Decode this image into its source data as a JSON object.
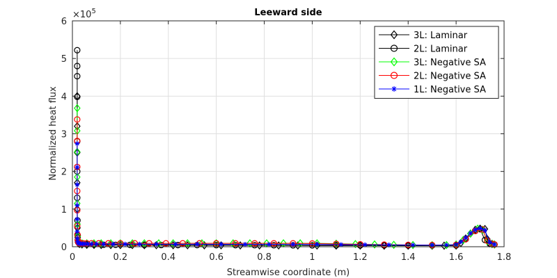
{
  "chart_data": {
    "type": "line",
    "title": "Leeward side",
    "xlabel": "Streamwise coordinate (m)",
    "ylabel": "Normalized heat flux",
    "y_exponent_label": "×10",
    "y_exponent_power": "5",
    "xlim": [
      0,
      1.8
    ],
    "ylim": [
      0,
      600000
    ],
    "x_ticks": [
      0,
      0.2,
      0.4,
      0.6,
      0.8,
      1,
      1.2,
      1.4,
      1.6,
      1.8
    ],
    "x_tick_labels": [
      "0",
      "0.2",
      "0.4",
      "0.6",
      "0.8",
      "1",
      "1.2",
      "1.4",
      "1.6",
      "1.8"
    ],
    "y_ticks": [
      0,
      100000,
      200000,
      300000,
      400000,
      500000,
      600000
    ],
    "y_tick_labels": [
      "0",
      "1",
      "2",
      "3",
      "4",
      "5",
      "6"
    ],
    "grid": true,
    "legend_position": "top-right",
    "series": [
      {
        "name": "3L: Laminar",
        "color": "#000000",
        "marker": "diamond",
        "x": [
          0.02,
          0.02,
          0.02,
          0.02,
          0.02,
          0.021,
          0.022,
          0.023,
          0.025,
          0.03,
          0.04,
          0.06,
          0.09,
          0.12,
          0.16,
          0.2,
          0.25,
          0.3,
          0.35,
          0.42,
          0.48,
          0.55,
          0.62,
          0.7,
          0.78,
          0.86,
          0.94,
          1.02,
          1.1,
          1.2,
          1.3,
          1.4,
          1.5,
          1.55,
          1.6,
          1.62,
          1.64,
          1.66,
          1.68,
          1.7,
          1.72,
          1.73,
          1.74,
          1.75,
          1.76
        ],
        "y": [
          400000,
          320000,
          250000,
          170000,
          100000,
          50000,
          25000,
          12000,
          9000,
          7000,
          6000,
          5000,
          4800,
          4600,
          4400,
          4300,
          4200,
          4100,
          4000,
          3900,
          3800,
          3700,
          3600,
          3500,
          3400,
          3300,
          3200,
          3100,
          3000,
          2900,
          2800,
          2700,
          2700,
          2800,
          3000,
          10000,
          22000,
          35000,
          45000,
          48000,
          47000,
          20000,
          9000,
          7000,
          6000
        ]
      },
      {
        "name": "2L: Laminar",
        "color": "#000000",
        "marker": "circle",
        "x": [
          0.02,
          0.02,
          0.02,
          0.02,
          0.02,
          0.02,
          0.02,
          0.021,
          0.022,
          0.024,
          0.03,
          0.04,
          0.06,
          0.09,
          0.13,
          0.18,
          0.24,
          0.3,
          0.37,
          0.44,
          0.52,
          0.6,
          0.68,
          0.76,
          0.84,
          0.92,
          1.0,
          1.1,
          1.2,
          1.3,
          1.4,
          1.5,
          1.6,
          1.64,
          1.68,
          1.7,
          1.72,
          1.74,
          1.76
        ],
        "y": [
          522000,
          480000,
          453000,
          398000,
          280000,
          200000,
          130000,
          70000,
          30000,
          14000,
          9500,
          7500,
          6000,
          5500,
          5200,
          5000,
          4800,
          4600,
          4500,
          4400,
          4300,
          4200,
          4100,
          4000,
          3900,
          3800,
          3700,
          3600,
          3500,
          3400,
          3300,
          3200,
          3400,
          20000,
          42000,
          47000,
          18000,
          8000,
          6000
        ]
      },
      {
        "name": "3L: Negative SA",
        "color": "#00ff00",
        "marker": "diamond",
        "x": [
          0.02,
          0.02,
          0.02,
          0.02,
          0.02,
          0.021,
          0.022,
          0.024,
          0.027,
          0.032,
          0.04,
          0.06,
          0.09,
          0.12,
          0.16,
          0.2,
          0.25,
          0.3,
          0.36,
          0.42,
          0.48,
          0.54,
          0.6,
          0.67,
          0.74,
          0.81,
          0.88,
          0.95,
          1.02,
          1.1,
          1.18,
          1.26,
          1.34,
          1.42,
          1.5,
          1.56,
          1.6,
          1.63,
          1.66,
          1.69,
          1.71,
          1.73,
          1.75,
          1.76
        ],
        "y": [
          368000,
          308000,
          252000,
          185000,
          115000,
          60000,
          28000,
          15000,
          11000,
          9500,
          9000,
          9000,
          9000,
          9000,
          9000,
          9000,
          9000,
          9000,
          9000,
          9000,
          9000,
          9000,
          9000,
          9000,
          9000,
          9000,
          9000,
          9000,
          9000,
          8000,
          7000,
          6000,
          5000,
          4500,
          4200,
          4500,
          6000,
          18000,
          35000,
          48000,
          45000,
          15000,
          8000,
          6000
        ]
      },
      {
        "name": "2L: Negative SA",
        "color": "#ff0000",
        "marker": "circle",
        "x": [
          0.02,
          0.02,
          0.02,
          0.02,
          0.02,
          0.02,
          0.021,
          0.022,
          0.024,
          0.028,
          0.035,
          0.045,
          0.06,
          0.08,
          0.11,
          0.15,
          0.2,
          0.26,
          0.32,
          0.39,
          0.46,
          0.53,
          0.6,
          0.68,
          0.76,
          0.84,
          0.92,
          1.0,
          1.1,
          1.2,
          1.3,
          1.4,
          1.5,
          1.6,
          1.64,
          1.68,
          1.71,
          1.73,
          1.75,
          1.76
        ],
        "y": [
          338000,
          281000,
          212000,
          148000,
          97000,
          55000,
          32000,
          18000,
          12000,
          9500,
          9000,
          9000,
          9000,
          9000,
          9000,
          9000,
          9000,
          9000,
          9000,
          9000,
          9000,
          9000,
          9000,
          9000,
          9000,
          9000,
          9000,
          8500,
          7500,
          6500,
          5500,
          4800,
          4400,
          5000,
          20000,
          42000,
          46000,
          16000,
          8000,
          6000
        ]
      },
      {
        "name": "1L: Negative SA",
        "color": "#0000ff",
        "marker": "star",
        "x": [
          0.02,
          0.02,
          0.02,
          0.02,
          0.02,
          0.02,
          0.021,
          0.022,
          0.024,
          0.028,
          0.034,
          0.042,
          0.052,
          0.065,
          0.08,
          0.1,
          0.13,
          0.17,
          0.22,
          0.28,
          0.35,
          0.43,
          0.52,
          0.62,
          0.72,
          0.82,
          0.92,
          1.02,
          1.12,
          1.22,
          1.32,
          1.42,
          1.5,
          1.56,
          1.6,
          1.62,
          1.64,
          1.66,
          1.68,
          1.7,
          1.72,
          1.74,
          1.76
        ],
        "y": [
          274000,
          211000,
          165000,
          110000,
          73000,
          40000,
          22000,
          14000,
          10000,
          8500,
          8000,
          7800,
          7600,
          7500,
          7400,
          7300,
          7200,
          7100,
          7000,
          6900,
          6800,
          6700,
          6600,
          6500,
          6400,
          6300,
          6200,
          6000,
          5600,
          5200,
          4800,
          4400,
          4200,
          4300,
          5500,
          13000,
          24000,
          36000,
          45000,
          49000,
          44000,
          12000,
          6000
        ]
      }
    ]
  }
}
